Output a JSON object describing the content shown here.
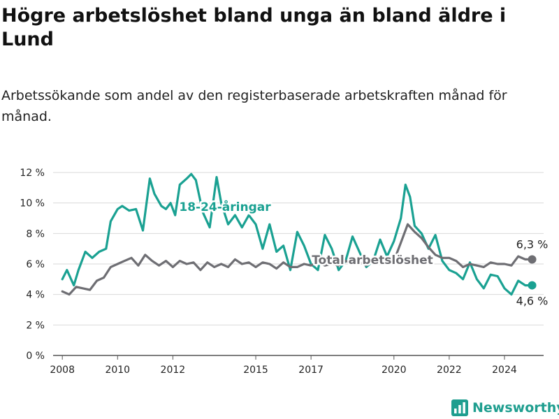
{
  "title": "Högre arbetslöshet bland unga än bland äldre i Lund",
  "subtitle": "Arbetssökande som andel av den registerbaserade arbetskraften månad för månad.",
  "brand": {
    "name": "Newsworthy",
    "icon": "newsworthy-logo-icon",
    "color": "#1f9e8f"
  },
  "chart_data": {
    "type": "line",
    "title": "Högre arbetslöshet bland unga än bland äldre i Lund",
    "subtitle": "Arbetssökande som andel av den registerbaserade arbetskraften månad för månad.",
    "xlabel": "",
    "ylabel": "",
    "ylim": [
      0,
      12
    ],
    "xlim": [
      "2007-09",
      "2025-06"
    ],
    "grid": true,
    "x_ticks": [
      2008,
      2010,
      2012,
      2015,
      2017,
      2020,
      2022,
      2024
    ],
    "y_ticks": [
      "0 %",
      "2 %",
      "4 %",
      "6 %",
      "8 %",
      "10 %",
      "12 %"
    ],
    "series": [
      {
        "name": "18-24-åringar",
        "color": "#1aa192",
        "end_label": "4,6 %",
        "points": [
          [
            "2008-01",
            5.0
          ],
          [
            "2008-03",
            5.6
          ],
          [
            "2008-06",
            4.6
          ],
          [
            "2008-08",
            5.6
          ],
          [
            "2008-11",
            6.8
          ],
          [
            "2009-02",
            6.4
          ],
          [
            "2009-05",
            6.8
          ],
          [
            "2009-08",
            7.0
          ],
          [
            "2009-10",
            8.8
          ],
          [
            "2010-01",
            9.6
          ],
          [
            "2010-03",
            9.8
          ],
          [
            "2010-06",
            9.5
          ],
          [
            "2010-09",
            9.6
          ],
          [
            "2010-12",
            8.2
          ],
          [
            "2011-03",
            11.6
          ],
          [
            "2011-05",
            10.6
          ],
          [
            "2011-08",
            9.8
          ],
          [
            "2011-10",
            9.6
          ],
          [
            "2011-12",
            10.0
          ],
          [
            "2012-02",
            9.2
          ],
          [
            "2012-04",
            11.2
          ],
          [
            "2012-07",
            11.6
          ],
          [
            "2012-09",
            11.9
          ],
          [
            "2012-11",
            11.5
          ],
          [
            "2013-02",
            9.4
          ],
          [
            "2013-05",
            8.4
          ],
          [
            "2013-08",
            11.7
          ],
          [
            "2013-10",
            10.0
          ],
          [
            "2014-01",
            8.6
          ],
          [
            "2014-04",
            9.2
          ],
          [
            "2014-07",
            8.4
          ],
          [
            "2014-10",
            9.2
          ],
          [
            "2015-01",
            8.6
          ],
          [
            "2015-04",
            7.0
          ],
          [
            "2015-07",
            8.6
          ],
          [
            "2015-10",
            6.8
          ],
          [
            "2016-01",
            7.2
          ],
          [
            "2016-04",
            5.6
          ],
          [
            "2016-07",
            8.1
          ],
          [
            "2016-10",
            7.2
          ],
          [
            "2017-01",
            6.0
          ],
          [
            "2017-04",
            5.6
          ],
          [
            "2017-07",
            7.9
          ],
          [
            "2017-10",
            7.0
          ],
          [
            "2018-01",
            5.6
          ],
          [
            "2018-04",
            6.2
          ],
          [
            "2018-07",
            7.8
          ],
          [
            "2018-10",
            6.8
          ],
          [
            "2019-01",
            5.8
          ],
          [
            "2019-04",
            6.2
          ],
          [
            "2019-07",
            7.6
          ],
          [
            "2019-10",
            6.5
          ],
          [
            "2020-01",
            7.5
          ],
          [
            "2020-04",
            9.0
          ],
          [
            "2020-06",
            11.2
          ],
          [
            "2020-08",
            10.4
          ],
          [
            "2020-10",
            8.5
          ],
          [
            "2021-01",
            8.0
          ],
          [
            "2021-04",
            7.0
          ],
          [
            "2021-07",
            7.9
          ],
          [
            "2021-10",
            6.2
          ],
          [
            "2022-01",
            5.6
          ],
          [
            "2022-04",
            5.4
          ],
          [
            "2022-07",
            5.0
          ],
          [
            "2022-10",
            6.1
          ],
          [
            "2023-01",
            5.0
          ],
          [
            "2023-04",
            4.4
          ],
          [
            "2023-07",
            5.3
          ],
          [
            "2023-10",
            5.2
          ],
          [
            "2024-01",
            4.4
          ],
          [
            "2024-04",
            4.0
          ],
          [
            "2024-07",
            4.9
          ],
          [
            "2024-10",
            4.6
          ],
          [
            "2025-01",
            4.6
          ]
        ]
      },
      {
        "name": "Total arbetslöshet",
        "color": "#6e6e73",
        "end_label": "6,3 %",
        "points": [
          [
            "2008-01",
            4.2
          ],
          [
            "2008-04",
            4.0
          ],
          [
            "2008-07",
            4.5
          ],
          [
            "2008-10",
            4.4
          ],
          [
            "2009-01",
            4.3
          ],
          [
            "2009-04",
            4.9
          ],
          [
            "2009-07",
            5.1
          ],
          [
            "2009-10",
            5.8
          ],
          [
            "2010-01",
            6.0
          ],
          [
            "2010-04",
            6.2
          ],
          [
            "2010-07",
            6.4
          ],
          [
            "2010-10",
            5.9
          ],
          [
            "2011-01",
            6.6
          ],
          [
            "2011-04",
            6.2
          ],
          [
            "2011-07",
            5.9
          ],
          [
            "2011-10",
            6.2
          ],
          [
            "2012-01",
            5.8
          ],
          [
            "2012-04",
            6.2
          ],
          [
            "2012-07",
            6.0
          ],
          [
            "2012-10",
            6.1
          ],
          [
            "2013-01",
            5.6
          ],
          [
            "2013-04",
            6.1
          ],
          [
            "2013-07",
            5.8
          ],
          [
            "2013-10",
            6.0
          ],
          [
            "2014-01",
            5.8
          ],
          [
            "2014-04",
            6.3
          ],
          [
            "2014-07",
            6.0
          ],
          [
            "2014-10",
            6.1
          ],
          [
            "2015-01",
            5.8
          ],
          [
            "2015-04",
            6.1
          ],
          [
            "2015-07",
            6.0
          ],
          [
            "2015-10",
            5.7
          ],
          [
            "2016-01",
            6.1
          ],
          [
            "2016-04",
            5.8
          ],
          [
            "2016-07",
            5.8
          ],
          [
            "2016-10",
            6.0
          ],
          [
            "2017-01",
            5.9
          ],
          [
            "2017-04",
            6.1
          ],
          [
            "2017-07",
            5.9
          ],
          [
            "2017-10",
            6.0
          ],
          [
            "2018-01",
            5.9
          ],
          [
            "2018-04",
            6.2
          ],
          [
            "2018-07",
            6.0
          ],
          [
            "2018-10",
            6.1
          ],
          [
            "2019-01",
            5.9
          ],
          [
            "2019-04",
            6.2
          ],
          [
            "2019-07",
            6.0
          ],
          [
            "2019-10",
            6.4
          ],
          [
            "2020-01",
            6.2
          ],
          [
            "2020-04",
            7.4
          ],
          [
            "2020-07",
            8.6
          ],
          [
            "2020-10",
            8.1
          ],
          [
            "2021-01",
            7.7
          ],
          [
            "2021-04",
            7.1
          ],
          [
            "2021-07",
            6.6
          ],
          [
            "2021-10",
            6.4
          ],
          [
            "2022-01",
            6.4
          ],
          [
            "2022-04",
            6.2
          ],
          [
            "2022-07",
            5.8
          ],
          [
            "2022-10",
            6.0
          ],
          [
            "2023-01",
            5.9
          ],
          [
            "2023-04",
            5.8
          ],
          [
            "2023-07",
            6.1
          ],
          [
            "2023-10",
            6.0
          ],
          [
            "2024-01",
            6.0
          ],
          [
            "2024-04",
            5.9
          ],
          [
            "2024-07",
            6.5
          ],
          [
            "2024-10",
            6.3
          ],
          [
            "2025-01",
            6.3
          ]
        ]
      }
    ]
  }
}
